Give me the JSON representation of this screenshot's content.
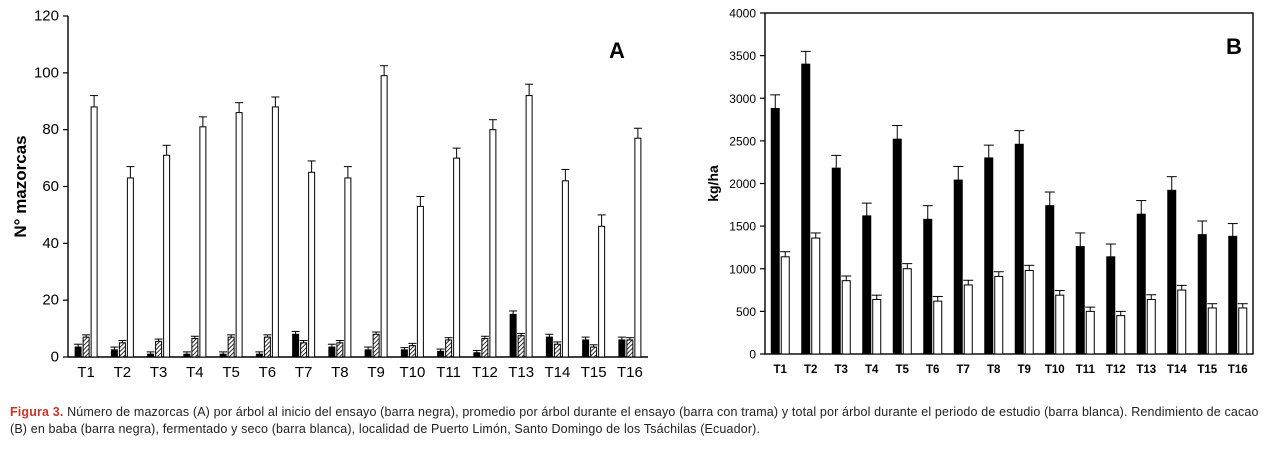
{
  "chart_data": [
    {
      "type": "bar",
      "panel_label": "A",
      "ylabel": "N° mazorcas",
      "ylim": [
        0,
        120
      ],
      "yticks": [
        0,
        20,
        40,
        60,
        80,
        100,
        120
      ],
      "categories": [
        "T1",
        "T2",
        "T3",
        "T4",
        "T5",
        "T6",
        "T7",
        "T8",
        "T9",
        "T10",
        "T11",
        "T12",
        "T13",
        "T14",
        "T15",
        "T16"
      ],
      "series": [
        {
          "values": [
            3.5,
            2.5,
            1,
            1,
            1,
            1,
            8,
            3.5,
            2.5,
            2.5,
            2,
            1.5,
            15,
            7,
            6,
            6
          ],
          "errors": [
            1,
            1,
            0.8,
            0.8,
            0.8,
            0.8,
            1,
            1,
            1,
            0.8,
            0.8,
            0.8,
            1.2,
            1,
            1,
            1
          ],
          "color": "#000000"
        },
        {
          "values": [
            7,
            5,
            5.5,
            6.5,
            7,
            7,
            5,
            5,
            8,
            4,
            6,
            6.5,
            7.5,
            4.5,
            3.5,
            6
          ],
          "errors": [
            0.8,
            0.8,
            0.8,
            0.8,
            0.8,
            0.8,
            0.8,
            0.8,
            0.8,
            0.8,
            0.8,
            0.8,
            0.8,
            0.8,
            0.8,
            0.8
          ],
          "color": "hatched"
        },
        {
          "values": [
            88,
            63,
            71,
            81,
            86,
            88,
            65,
            63,
            99,
            53,
            70,
            80,
            92,
            62,
            46,
            77
          ],
          "errors": [
            4,
            4,
            3.5,
            3.5,
            3.5,
            3.5,
            4,
            4,
            3.5,
            3.5,
            3.5,
            3.5,
            4,
            4,
            4,
            3.5
          ],
          "color": "#ffffff"
        }
      ]
    },
    {
      "type": "bar",
      "panel_label": "B",
      "ylabel": "kg/ha",
      "ylim": [
        0,
        4000
      ],
      "yticks": [
        0,
        500,
        1000,
        1500,
        2000,
        2500,
        3000,
        3500,
        4000
      ],
      "categories": [
        "T1",
        "T2",
        "T3",
        "T4",
        "T5",
        "T6",
        "T7",
        "T8",
        "T9",
        "T10",
        "T11",
        "T12",
        "T13",
        "T14",
        "T15",
        "T16"
      ],
      "series": [
        {
          "values": [
            2880,
            3400,
            2180,
            1620,
            2520,
            1580,
            2040,
            2300,
            2460,
            1740,
            1260,
            1140,
            1640,
            1920,
            1400,
            1380
          ],
          "errors": [
            160,
            150,
            150,
            150,
            160,
            160,
            160,
            150,
            160,
            160,
            160,
            150,
            160,
            160,
            160,
            150
          ],
          "color": "#000000"
        },
        {
          "values": [
            1140,
            1360,
            860,
            640,
            1000,
            620,
            810,
            910,
            980,
            690,
            500,
            450,
            640,
            750,
            540,
            540
          ],
          "errors": [
            60,
            60,
            55,
            50,
            60,
            55,
            55,
            55,
            60,
            55,
            50,
            50,
            55,
            55,
            50,
            50
          ],
          "color": "#ffffff"
        }
      ]
    }
  ],
  "caption": {
    "lead": "Figura 3.",
    "text": " Número de mazorcas (A) por árbol al inicio del ensayo (barra negra), promedio por árbol durante el ensayo (barra con trama) y total por árbol durante el periodo de estudio (barra blanca). Rendimiento de cacao (B) en baba (barra negra), fermentado y seco (barra blanca), localidad de Puerto Limón, Santo Domingo de los Tsáchilas (Ecuador)."
  }
}
